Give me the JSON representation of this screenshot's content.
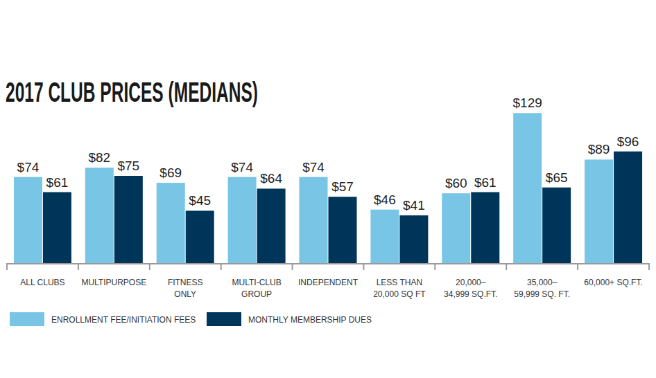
{
  "chart_data": {
    "type": "bar",
    "title": "2017 CLUB PRICES (MEDIANS)",
    "categories": [
      "ALL CLUBS",
      "MULTIPURPOSE",
      "FITNESS\nONLY",
      "MULTI-CLUB\nGROUP",
      "INDEPENDENT",
      "LESS THAN\n20,000 SQ FT",
      "20,000–\n34,999 SQ.FT.",
      "35,000–\n59,999 SQ. FT.",
      "60,000+ SQ.FT."
    ],
    "series": [
      {
        "name": "ENROLLMENT FEE/INITIATION FEES",
        "color": "#78c5e6",
        "values": [
          74,
          82,
          69,
          74,
          74,
          46,
          60,
          129,
          89
        ],
        "value_labels": [
          "$74",
          "$82",
          "$69",
          "$74",
          "$74",
          "$46",
          "$60",
          "$129",
          "$89"
        ]
      },
      {
        "name": "MONTHLY MEMBERSHIP DUES",
        "color": "#00355a",
        "values": [
          61,
          75,
          45,
          64,
          57,
          41,
          61,
          65,
          96
        ],
        "value_labels": [
          "$61",
          "$75",
          "$45",
          "$64",
          "$57",
          "$41",
          "$61",
          "$65",
          "$96"
        ]
      }
    ],
    "ylim": [
      0,
      140
    ],
    "data_labels": true,
    "tick_labels": "x",
    "grid": false,
    "legend": "bottom-left"
  }
}
